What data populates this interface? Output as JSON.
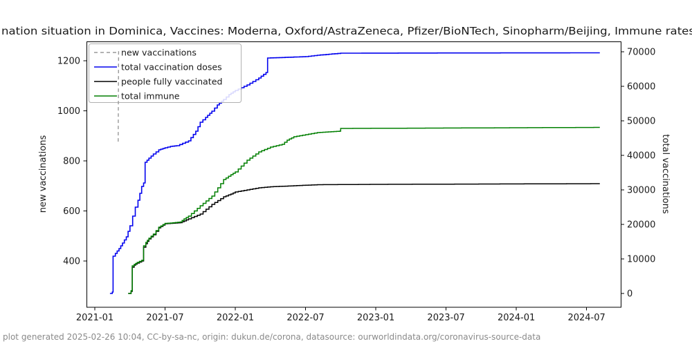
{
  "footer": {
    "text": "plot generated 2025-02-26 10:04, CC-by-sa-nc, origin: dukun.de/corona, datasource: ourworldindata.org/coronavirus-source-data"
  },
  "chart_data": {
    "type": "line",
    "title": "nation situation in Dominica, Vaccines: Moderna, Oxford/AstraZeneca, Pfizer/BioNTech, Sinopharm/Beijing, Immune rates",
    "left_axis": {
      "label": "new vaccinations",
      "ticks": [
        400,
        600,
        800,
        1000,
        1200
      ],
      "range": [
        229,
        1283
      ]
    },
    "right_axis": {
      "label": "total vaccinations",
      "ticks": [
        0,
        10000,
        20000,
        30000,
        40000,
        50000,
        60000,
        70000
      ],
      "range": [
        -4000,
        73000
      ]
    },
    "x_axis": {
      "ticks": [
        "2021-01",
        "2021-07",
        "2022-01",
        "2022-07",
        "2023-01",
        "2023-07",
        "2024-01",
        "2024-07"
      ]
    },
    "legend": [
      {
        "label": "new vaccinations",
        "color": "#989898",
        "dash": true
      },
      {
        "label": "total vaccination doses",
        "color": "#0000ee",
        "dash": false
      },
      {
        "label": "people fully vaccinated",
        "color": "#000000",
        "dash": false
      },
      {
        "label": "total immune",
        "color": "#007f00",
        "dash": false
      }
    ],
    "series": [
      {
        "name": "total vaccination doses",
        "axis": "right",
        "color": "#0000ee",
        "width": 1.6,
        "dash": false,
        "overlay": false,
        "points": [
          [
            "2021-02-10",
            0
          ],
          [
            "2021-02-16",
            400
          ],
          [
            "2021-02-18",
            10800
          ],
          [
            "2021-02-24",
            11600
          ],
          [
            "2021-03-03",
            13000
          ],
          [
            "2021-03-12",
            14600
          ],
          [
            "2021-03-22",
            16400
          ],
          [
            "2021-04-01",
            19600
          ],
          [
            "2021-04-08",
            22400
          ],
          [
            "2021-04-15",
            25000
          ],
          [
            "2021-04-22",
            27000
          ],
          [
            "2021-05-01",
            31000
          ],
          [
            "2021-05-06",
            32000
          ],
          [
            "2021-05-10",
            38000
          ],
          [
            "2021-05-20",
            39200
          ],
          [
            "2021-06-01",
            40400
          ],
          [
            "2021-06-15",
            41600
          ],
          [
            "2021-07-01",
            42200
          ],
          [
            "2021-07-15",
            42600
          ],
          [
            "2021-08-01",
            42800
          ],
          [
            "2021-09-01",
            44200
          ],
          [
            "2021-09-20",
            47000
          ],
          [
            "2021-10-01",
            49600
          ],
          [
            "2021-10-15",
            51000
          ],
          [
            "2021-11-01",
            52800
          ],
          [
            "2021-11-15",
            54600
          ],
          [
            "2021-12-01",
            56200
          ],
          [
            "2021-12-15",
            57600
          ],
          [
            "2022-01-01",
            58800
          ],
          [
            "2022-02-01",
            60400
          ],
          [
            "2022-03-01",
            62400
          ],
          [
            "2022-03-20",
            64000
          ],
          [
            "2022-03-24",
            68200
          ],
          [
            "2022-05-01",
            68350
          ],
          [
            "2022-07-01",
            68600
          ],
          [
            "2022-08-01",
            69000
          ],
          [
            "2022-10-01",
            69600
          ],
          [
            "2023-06-01",
            69650
          ],
          [
            "2024-08-05",
            69700
          ]
        ]
      },
      {
        "name": "people fully vaccinated",
        "axis": "right",
        "color": "#000000",
        "width": 1.5,
        "dash": false,
        "overlay": false,
        "points": [
          [
            "2021-03-27",
            0
          ],
          [
            "2021-04-04",
            600
          ],
          [
            "2021-04-07",
            7600
          ],
          [
            "2021-04-12",
            8200
          ],
          [
            "2021-04-20",
            8800
          ],
          [
            "2021-05-01",
            9400
          ],
          [
            "2021-05-06",
            13400
          ],
          [
            "2021-05-12",
            14400
          ],
          [
            "2021-05-20",
            15800
          ],
          [
            "2021-06-01",
            17000
          ],
          [
            "2021-06-15",
            19000
          ],
          [
            "2021-07-01",
            20200
          ],
          [
            "2021-07-15",
            20300
          ],
          [
            "2021-08-10",
            20500
          ],
          [
            "2021-08-20",
            21000
          ],
          [
            "2021-09-01",
            21600
          ],
          [
            "2021-10-01",
            23000
          ],
          [
            "2021-11-01",
            25800
          ],
          [
            "2021-12-01",
            28000
          ],
          [
            "2021-12-20",
            28800
          ],
          [
            "2022-01-01",
            29400
          ],
          [
            "2022-02-01",
            30000
          ],
          [
            "2022-03-01",
            30600
          ],
          [
            "2022-04-01",
            30900
          ],
          [
            "2022-06-01",
            31200
          ],
          [
            "2022-08-01",
            31500
          ],
          [
            "2023-01-01",
            31600
          ],
          [
            "2024-08-05",
            31800
          ]
        ]
      },
      {
        "name": "total immune",
        "axis": "right",
        "color": "#007f00",
        "width": 1.5,
        "dash": false,
        "overlay": false,
        "points": [
          [
            "2021-03-27",
            0
          ],
          [
            "2021-04-04",
            800
          ],
          [
            "2021-04-07",
            8000
          ],
          [
            "2021-04-12",
            8400
          ],
          [
            "2021-04-20",
            9000
          ],
          [
            "2021-05-01",
            9600
          ],
          [
            "2021-05-06",
            13800
          ],
          [
            "2021-05-12",
            14800
          ],
          [
            "2021-05-20",
            16000
          ],
          [
            "2021-06-01",
            17200
          ],
          [
            "2021-06-15",
            19200
          ],
          [
            "2021-07-01",
            20300
          ],
          [
            "2021-07-15",
            20400
          ],
          [
            "2021-08-10",
            20700
          ],
          [
            "2021-08-20",
            21600
          ],
          [
            "2021-09-01",
            22400
          ],
          [
            "2021-10-01",
            25400
          ],
          [
            "2021-11-01",
            28200
          ],
          [
            "2021-12-01",
            33000
          ],
          [
            "2021-12-20",
            34400
          ],
          [
            "2022-01-01",
            35200
          ],
          [
            "2022-02-01",
            38600
          ],
          [
            "2022-03-01",
            41000
          ],
          [
            "2022-04-01",
            42400
          ],
          [
            "2022-05-01",
            43200
          ],
          [
            "2022-05-14",
            44400
          ],
          [
            "2022-06-01",
            45400
          ],
          [
            "2022-07-01",
            46000
          ],
          [
            "2022-08-01",
            46600
          ],
          [
            "2022-09-28",
            47000
          ],
          [
            "2022-10-01",
            47800
          ],
          [
            "2023-06-01",
            47900
          ],
          [
            "2024-08-05",
            48100
          ]
        ]
      },
      {
        "name": "new vaccinations",
        "axis": "left",
        "color": "#989898",
        "width": 1.4,
        "dash": true,
        "overlay": true,
        "points": [
          [
            "2021-03-01",
            877
          ],
          [
            "2021-03-02",
            1244
          ]
        ]
      }
    ]
  }
}
